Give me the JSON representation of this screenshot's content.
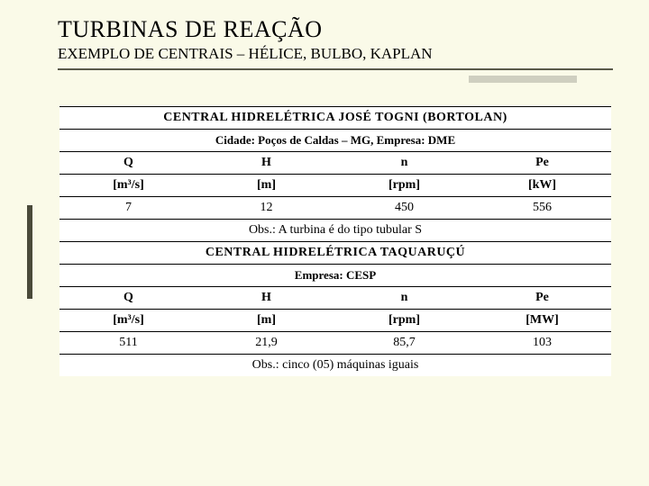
{
  "title": "TURBINAS DE REAÇÃO",
  "subtitle": "EXEMPLO DE CENTRAIS – HÉLICE, BULBO, KAPLAN",
  "plants": [
    {
      "header": "CENTRAL HIDRELÉTRICA JOSÉ TOGNI (BORTOLAN)",
      "sub": "Cidade: Poços de Caldas – MG, Empresa: DME",
      "cols": {
        "q_sym": "Q",
        "h_sym": "H",
        "n_sym": "n",
        "pe_sym": "Pe",
        "q_unit": "[m³/s]",
        "h_unit": "[m]",
        "n_unit": "[rpm]",
        "pe_unit": "[kW]",
        "q_val": "7",
        "h_val": "12",
        "n_val": "450",
        "pe_val": "556"
      },
      "obs": "Obs.: A turbina é do tipo tubular S"
    },
    {
      "header": "CENTRAL HIDRELÉTRICA TAQUARUÇÚ",
      "sub": "Empresa: CESP",
      "cols": {
        "q_sym": "Q",
        "h_sym": "H",
        "n_sym": "n",
        "pe_sym": "Pe",
        "q_unit": "[m³/s]",
        "h_unit": "[m]",
        "n_unit": "[rpm]",
        "pe_unit": "[MW]",
        "q_val": "511",
        "h_val": "21,9",
        "n_val": "85,7",
        "pe_val": "103"
      },
      "obs": "Obs.: cinco (05) máquinas iguais"
    }
  ]
}
